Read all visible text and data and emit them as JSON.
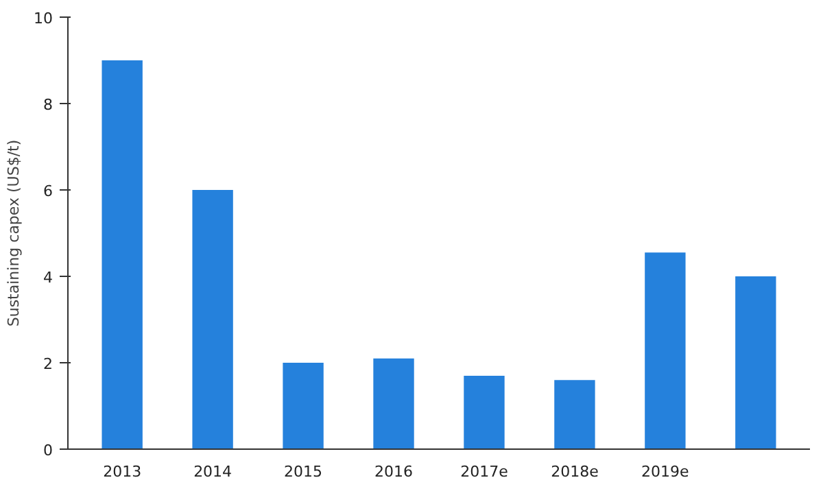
{
  "chart_data": {
    "type": "bar",
    "ylabel": "Sustaining capex (US$/t)",
    "categories": [
      "2013",
      "2014",
      "2015",
      "2016",
      "2017e",
      "2018e",
      "2019e",
      null
    ],
    "values": [
      9,
      6,
      2,
      2.1,
      1.7,
      1.6,
      4.55,
      4
    ],
    "color": "#2581dc",
    "ylim": [
      0,
      10
    ],
    "yticks": [
      0,
      2,
      4,
      6,
      8,
      10
    ],
    "grid": false
  }
}
